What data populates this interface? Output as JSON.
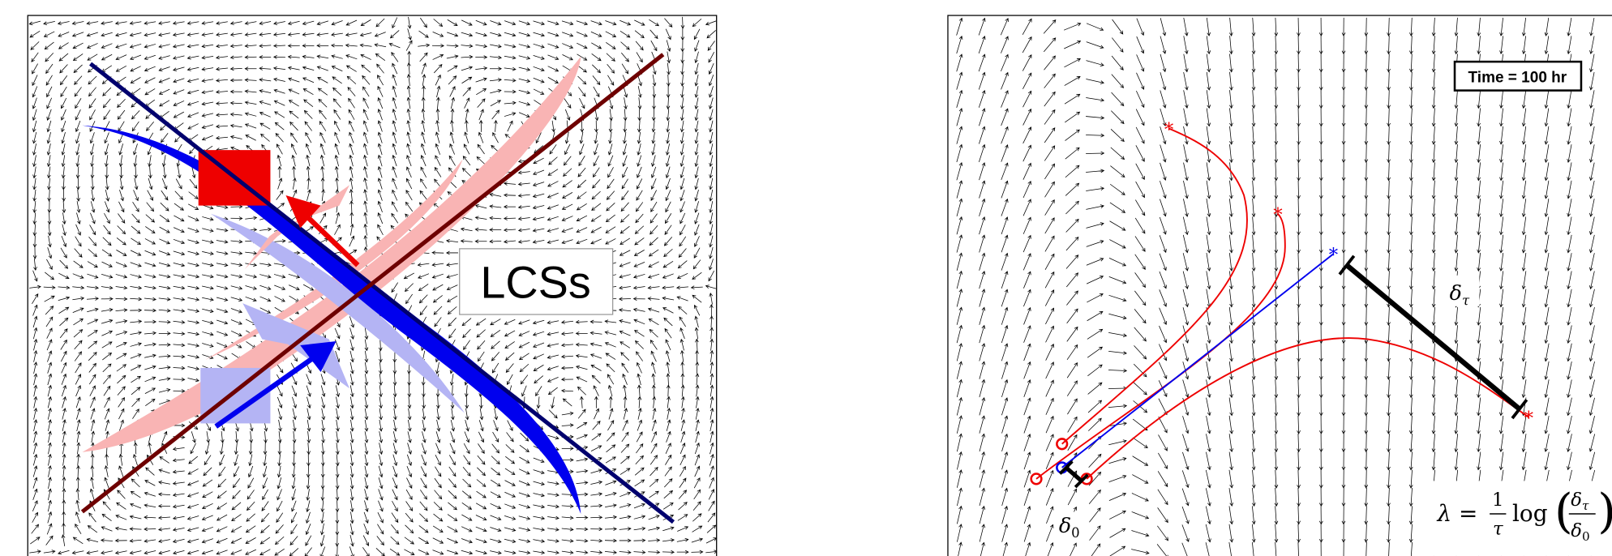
{
  "left_panel": {
    "label": "LCSs"
  },
  "right_panel": {
    "time_label": "Time = 100 hr",
    "delta_tau": {
      "symbol": "δ",
      "subscript": "τ"
    },
    "delta_0": {
      "symbol": "δ",
      "subscript": "0"
    },
    "formula": {
      "lhs": "λ =",
      "numerator": "1",
      "denominator": "τ",
      "log": "log",
      "ratio_numerator": {
        "symbol": "δ",
        "subscript": "τ"
      },
      "ratio_denominator": {
        "symbol": "δ",
        "subscript": "0"
      }
    }
  }
}
